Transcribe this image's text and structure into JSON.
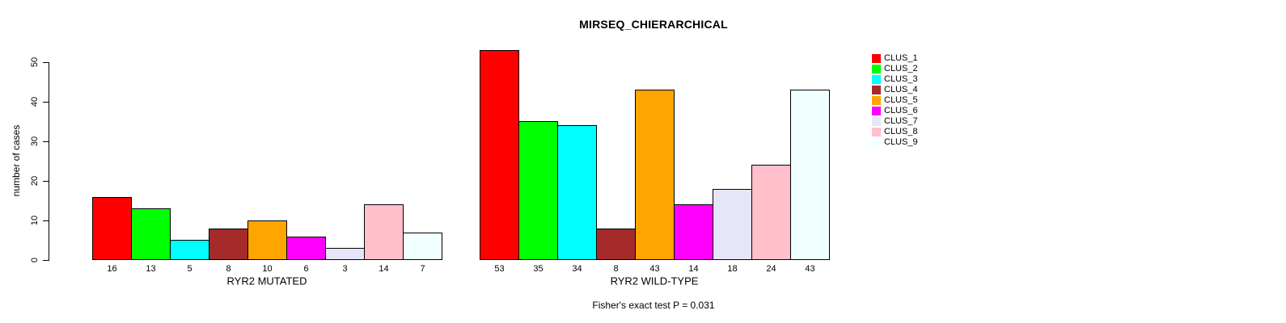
{
  "title": "MIRSEQ_CHIERARCHICAL",
  "footer_note": "Fisher's exact test P = 0.031",
  "y_axis": {
    "label": "number of cases",
    "ticks": [
      0,
      10,
      20,
      30,
      40,
      50
    ]
  },
  "legend": [
    {
      "label": "CLUS_1",
      "color": "#FF0000"
    },
    {
      "label": "CLUS_2",
      "color": "#00FF00"
    },
    {
      "label": "CLUS_3",
      "color": "#00FFFF"
    },
    {
      "label": "CLUS_4",
      "color": "#A52A2A"
    },
    {
      "label": "CLUS_5",
      "color": "#FFA500"
    },
    {
      "label": "CLUS_6",
      "color": "#FF00FF"
    },
    {
      "label": "CLUS_7",
      "color": "#E6E6FA"
    },
    {
      "label": "CLUS_8",
      "color": "#FFC0CB"
    },
    {
      "label": "CLUS_9",
      "color": "#F0FFFF"
    }
  ],
  "chart_data": {
    "type": "bar",
    "title": "MIRSEQ_CHIERARCHICAL",
    "ylabel": "number of cases",
    "ylim": [
      0,
      50
    ],
    "grid": false,
    "legend_position": "right",
    "categories": [
      "CLUS_1",
      "CLUS_2",
      "CLUS_3",
      "CLUS_4",
      "CLUS_5",
      "CLUS_6",
      "CLUS_7",
      "CLUS_8",
      "CLUS_9"
    ],
    "colors": [
      "#FF0000",
      "#00FF00",
      "#00FFFF",
      "#A52A2A",
      "#FFA500",
      "#FF00FF",
      "#E6E6FA",
      "#FFC0CB",
      "#F0FFFF"
    ],
    "panels": [
      {
        "xlabel": "RYR2 MUTATED",
        "values": [
          16,
          13,
          5,
          8,
          10,
          6,
          3,
          14,
          7
        ]
      },
      {
        "xlabel": "RYR2 WILD-TYPE",
        "values": [
          53,
          35,
          34,
          8,
          43,
          14,
          18,
          24,
          43
        ]
      }
    ],
    "annotation": "Fisher's exact test P = 0.031"
  }
}
